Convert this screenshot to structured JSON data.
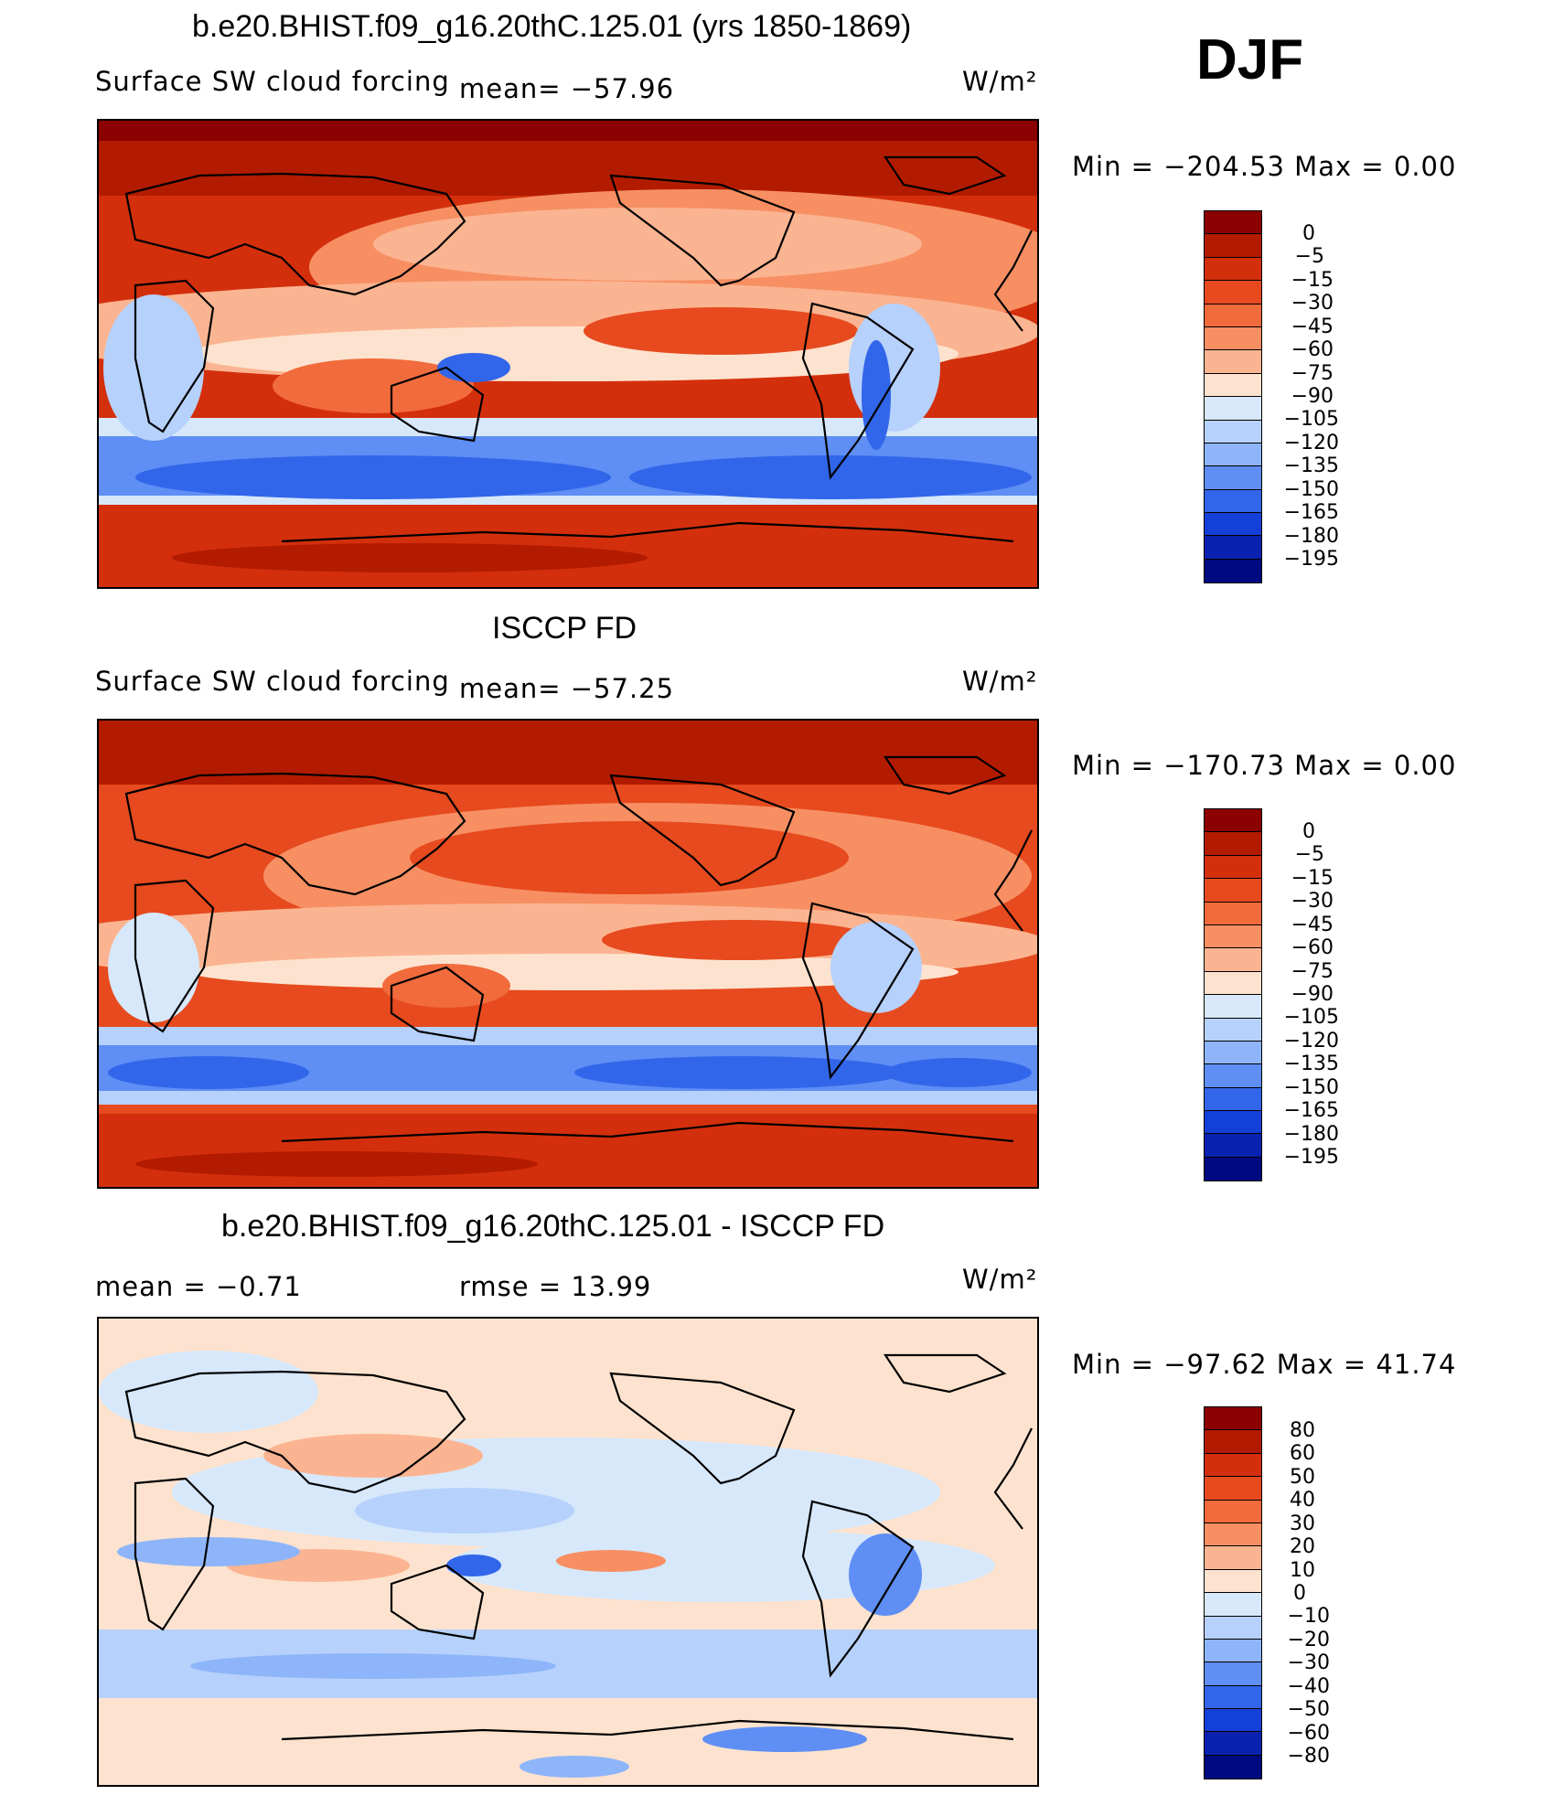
{
  "season": "DJF",
  "panels": [
    {
      "title": "b.e20.BHIST.f09_g16.20thC.125.01 (yrs 1850-1869)",
      "variable": "Surface SW cloud forcing",
      "stat": "mean= −57.96",
      "units": "W/m²",
      "minmax": "Min  =  −204.53  Max  =      0.00",
      "levels": [
        "0",
        "−5",
        "−15",
        "−30",
        "−45",
        "−60",
        "−75",
        "−90",
        "−105",
        "−120",
        "−135",
        "−150",
        "−165",
        "−180",
        "−195"
      ]
    },
    {
      "title": "ISCCP FD",
      "variable": "Surface SW cloud forcing",
      "stat": "mean= −57.25",
      "units": "W/m²",
      "minmax": "Min  =  −170.73  Max  =      0.00",
      "levels": [
        "0",
        "−5",
        "−15",
        "−30",
        "−45",
        "−60",
        "−75",
        "−90",
        "−105",
        "−120",
        "−135",
        "−150",
        "−165",
        "−180",
        "−195"
      ]
    },
    {
      "title": "b.e20.BHIST.f09_g16.20thC.125.01 - ISCCP FD",
      "stat_mean": "mean  =    −0.71",
      "stat_rmse": "rmse  =    13.99",
      "units": "W/m²",
      "minmax": "Min  =  −97.62  Max  =    41.74",
      "levels": [
        "80",
        "60",
        "50",
        "40",
        "30",
        "20",
        "10",
        "0",
        "−10",
        "−20",
        "−30",
        "−40",
        "−50",
        "−60",
        "−80"
      ]
    }
  ],
  "colors": {
    "scale": [
      "#8b0000",
      "#b31b00",
      "#d32f0c",
      "#e64a1e",
      "#f26b3c",
      "#f78f63",
      "#fbb491",
      "#fde3cf",
      "#d7e8fb",
      "#b6d1fb",
      "#8eb5fa",
      "#5f8ef4",
      "#3266ea",
      "#1340d8",
      "#0a22b0",
      "#000a80"
    ]
  }
}
